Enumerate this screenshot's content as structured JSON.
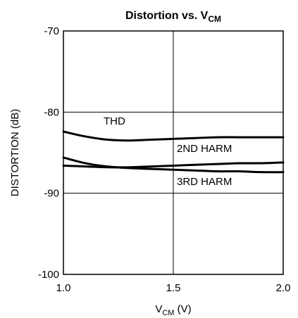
{
  "chart_data": {
    "type": "line",
    "title": {
      "main": "Distortion vs. V",
      "sub": "CM"
    },
    "xlabel": {
      "main": "V",
      "sub": "CM",
      "suffix": " (V)"
    },
    "ylabel": "DISTORTION (dB)",
    "xlim": [
      1.0,
      2.0
    ],
    "ylim": [
      -100,
      -70
    ],
    "xticks": [
      1.0,
      1.5,
      2.0
    ],
    "xtick_labels": [
      "1.0",
      "1.5",
      "2.0"
    ],
    "yticks": [
      -100,
      -90,
      -80,
      -70
    ],
    "ytick_labels": [
      "-100",
      "-90",
      "-80",
      "-70"
    ],
    "grid": true,
    "series": [
      {
        "name": "THD",
        "x": [
          1.0,
          1.1,
          1.2,
          1.3,
          1.4,
          1.5,
          1.6,
          1.7,
          1.8,
          1.9,
          2.0
        ],
        "y": [
          -82.4,
          -83.0,
          -83.4,
          -83.5,
          -83.4,
          -83.3,
          -83.2,
          -83.1,
          -83.1,
          -83.1,
          -83.1
        ]
      },
      {
        "name": "2ND HARM",
        "x": [
          1.0,
          1.1,
          1.2,
          1.3,
          1.4,
          1.5,
          1.6,
          1.7,
          1.8,
          1.9,
          2.0
        ],
        "y": [
          -86.6,
          -86.7,
          -86.8,
          -86.8,
          -86.7,
          -86.6,
          -86.5,
          -86.4,
          -86.3,
          -86.3,
          -86.2
        ]
      },
      {
        "name": "3RD HARM",
        "x": [
          1.0,
          1.1,
          1.2,
          1.3,
          1.4,
          1.5,
          1.6,
          1.7,
          1.8,
          1.9,
          2.0
        ],
        "y": [
          -85.6,
          -86.3,
          -86.7,
          -86.9,
          -87.0,
          -87.1,
          -87.2,
          -87.3,
          -87.3,
          -87.4,
          -87.4
        ]
      }
    ]
  }
}
